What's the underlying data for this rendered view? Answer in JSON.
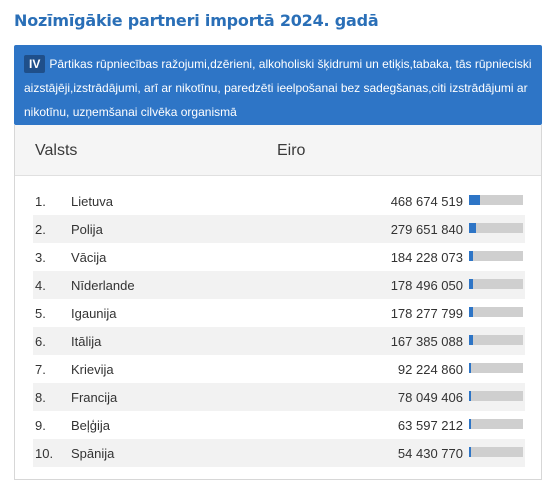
{
  "page": {
    "title": "Nozīmīgākie partneri importā 2024. gadā"
  },
  "banner": {
    "badge": "IV",
    "text": "Pārtikas rūpniecības ražojumi,dzērieni, alkoholiski šķidrumi un etiķis,tabaka, tās rūpnieciski aizstājēji,izstrādājumi, arī ar nikotīnu, paredzēti ieelpošanai bez sadegšanas,citi izstrādājumi ar nikotīnu, uzņemšanai cilvēka organismā",
    "color": "#2e75c6"
  },
  "table": {
    "headers": {
      "country": "Valsts",
      "value": "Eiro"
    },
    "rows": [
      {
        "rank": "1.",
        "country": "Lietuva",
        "value": "468 674 519",
        "share": 0.205
      },
      {
        "rank": "2.",
        "country": "Polija",
        "value": "279 651 840",
        "share": 0.122
      },
      {
        "rank": "3.",
        "country": "Vācija",
        "value": "184 228 073",
        "share": 0.081
      },
      {
        "rank": "4.",
        "country": "Nīderlande",
        "value": "178 496 050",
        "share": 0.078
      },
      {
        "rank": "5.",
        "country": "Igaunija",
        "value": "178 277 799",
        "share": 0.078
      },
      {
        "rank": "6.",
        "country": "Itālija",
        "value": "167 385 088",
        "share": 0.073
      },
      {
        "rank": "7.",
        "country": "Krievija",
        "value": "92 224 860",
        "share": 0.04
      },
      {
        "rank": "8.",
        "country": "Francija",
        "value": "78 049 406",
        "share": 0.034
      },
      {
        "rank": "9.",
        "country": "Beļģija",
        "value": "63 597 212",
        "share": 0.028
      },
      {
        "rank": "10.",
        "country": "Spānija",
        "value": "54 430 770",
        "share": 0.024
      }
    ],
    "bar_color": "#2e75c6",
    "track_color": "#cfcfcf"
  }
}
